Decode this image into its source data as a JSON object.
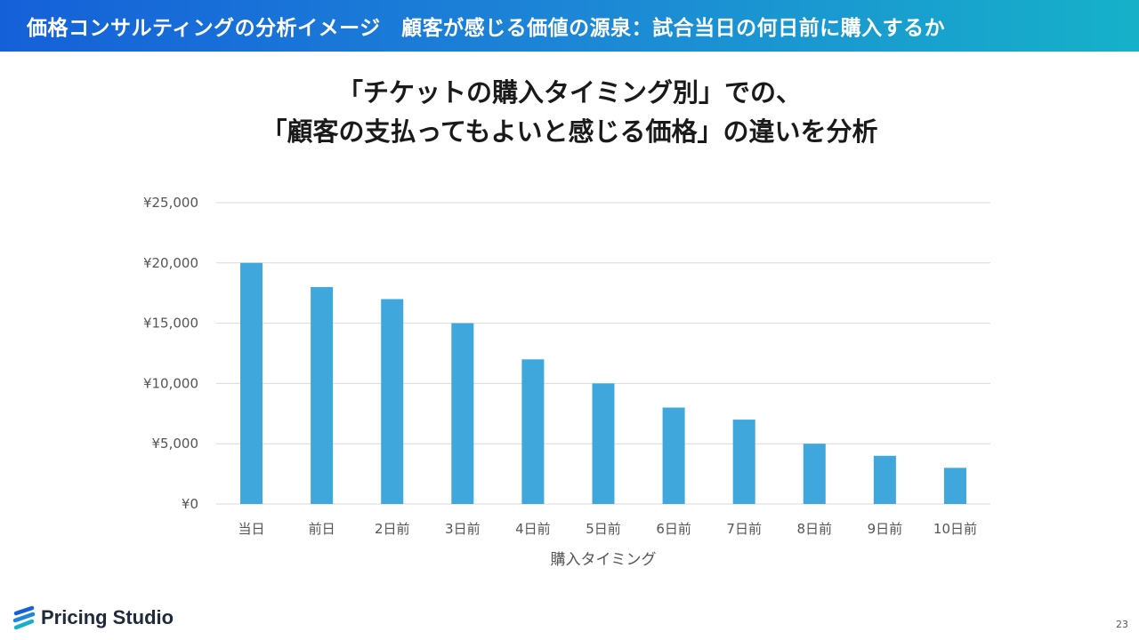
{
  "header": {
    "title": "価格コンサルティングの分析イメージ　顧客が感じる価値の源泉：試合当日の何日前に購入するか"
  },
  "subtitle": {
    "line1": "「チケットの購入タイミング別」での、",
    "line2": "「顧客の支払ってもよいと感じる価格」の違いを分析"
  },
  "chart_data": {
    "type": "bar",
    "title": "",
    "xlabel": "購入タイミング",
    "ylabel": "",
    "categories": [
      "当日",
      "前日",
      "2日前",
      "3日前",
      "4日前",
      "5日前",
      "6日前",
      "7日前",
      "8日前",
      "9日前",
      "10日前"
    ],
    "values": [
      20000,
      18000,
      17000,
      15000,
      12000,
      10000,
      8000,
      7000,
      5000,
      4000,
      3000
    ],
    "ylim": [
      0,
      25000
    ],
    "yticks": [
      0,
      5000,
      10000,
      15000,
      20000,
      25000
    ],
    "ytick_labels": [
      "¥0",
      "¥5,000",
      "¥10,000",
      "¥15,000",
      "¥20,000",
      "¥25,000"
    ],
    "grid": true,
    "bar_color": "#3fa7dc",
    "grid_color": "#d9d9d9"
  },
  "brand": {
    "name": "Pricing Studio",
    "icon": "pricing-studio-logo-icon",
    "accent": "#1560d9"
  },
  "page": {
    "number": "23"
  }
}
